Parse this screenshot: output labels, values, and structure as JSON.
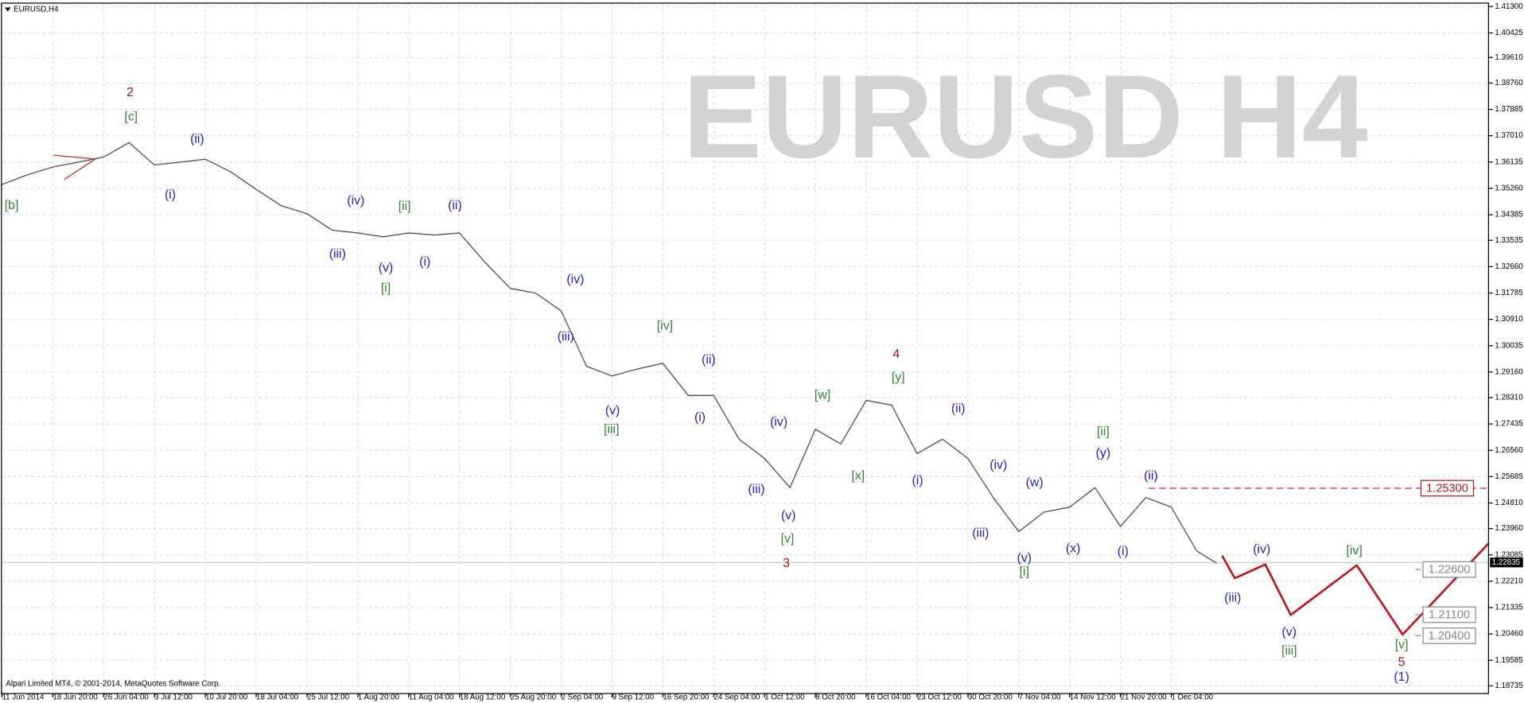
{
  "chart_data": {
    "type": "line",
    "title": "EURUSD,H4",
    "watermark": "EURUSD H4",
    "footer": "Alpari Limited MT4, © 2001-2014, MetaQuotes Software Corp.",
    "xlim": [
      0,
      29.25
    ],
    "ylim": [
      1.1848,
      1.4143
    ],
    "grid": true,
    "xticks": [
      {
        "value": 0,
        "label": "11 Jun 2014"
      },
      {
        "value": 1,
        "label": "18 Jun 20:00"
      },
      {
        "value": 2,
        "label": "26 Jun 04:00"
      },
      {
        "value": 3,
        "label": "3 Jul 12:00"
      },
      {
        "value": 4,
        "label": "10 Jul 20:00"
      },
      {
        "value": 5,
        "label": "18 Jul 04:00"
      },
      {
        "value": 6,
        "label": "25 Jul 12:00"
      },
      {
        "value": 7,
        "label": "1 Aug 20:00"
      },
      {
        "value": 8,
        "label": "11 Aug 04:00"
      },
      {
        "value": 9,
        "label": "18 Aug 12:00"
      },
      {
        "value": 10,
        "label": "25 Aug 20:00"
      },
      {
        "value": 11,
        "label": "2 Sep 04:00"
      },
      {
        "value": 12,
        "label": "9 Sep 12:00"
      },
      {
        "value": 13,
        "label": "16 Sep 20:00"
      },
      {
        "value": 14,
        "label": "24 Sep 04:00"
      },
      {
        "value": 15,
        "label": "1 Oct 12:00"
      },
      {
        "value": 16,
        "label": "8 Oct 20:00"
      },
      {
        "value": 17,
        "label": "16 Oct 04:00"
      },
      {
        "value": 18,
        "label": "23 Oct 12:00"
      },
      {
        "value": 19,
        "label": "30 Oct 20:00"
      },
      {
        "value": 20,
        "label": "7 Nov 04:00"
      },
      {
        "value": 21,
        "label": "14 Nov 12:00"
      },
      {
        "value": 22,
        "label": "21 Nov 20:00"
      },
      {
        "value": 23,
        "label": "1 Dec 04:00"
      }
    ],
    "yticks": [
      {
        "value": 1.413,
        "label": "1.41300"
      },
      {
        "value": 1.40425,
        "label": "1.40425"
      },
      {
        "value": 1.3961,
        "label": "1.39610"
      },
      {
        "value": 1.3876,
        "label": "1.38760"
      },
      {
        "value": 1.37885,
        "label": "1.37885"
      },
      {
        "value": 1.3701,
        "label": "1.37010"
      },
      {
        "value": 1.36135,
        "label": "1.36135"
      },
      {
        "value": 1.3526,
        "label": "1.35260"
      },
      {
        "value": 1.34385,
        "label": "1.34385"
      },
      {
        "value": 1.33535,
        "label": "1.33535"
      },
      {
        "value": 1.3266,
        "label": "1.32660"
      },
      {
        "value": 1.31785,
        "label": "1.31785"
      },
      {
        "value": 1.3091,
        "label": "1.30910"
      },
      {
        "value": 1.30035,
        "label": "1.30035"
      },
      {
        "value": 1.2916,
        "label": "1.29160"
      },
      {
        "value": 1.2831,
        "label": "1.28310"
      },
      {
        "value": 1.27435,
        "label": "1.27435"
      },
      {
        "value": 1.2656,
        "label": "1.26560"
      },
      {
        "value": 1.25685,
        "label": "1.25685"
      },
      {
        "value": 1.2481,
        "label": "1.24810"
      },
      {
        "value": 1.2396,
        "label": "1.23960"
      },
      {
        "value": 1.23085,
        "label": "1.23085"
      },
      {
        "value": 1.2221,
        "label": "1.22210"
      },
      {
        "value": 1.21335,
        "label": "1.21335"
      },
      {
        "value": 1.2046,
        "label": "1.20460"
      },
      {
        "value": 1.19585,
        "label": "1.19585"
      },
      {
        "value": 1.18735,
        "label": "1.18735"
      }
    ],
    "series": [
      {
        "name": "EURUSD",
        "color": "#555555",
        "x": [
          0,
          0.5,
          1,
          1.5,
          2,
          2.5,
          3,
          3.5,
          4,
          4.5,
          5,
          5.5,
          6,
          6.5,
          7,
          7.5,
          8,
          8.5,
          9,
          9.5,
          10,
          10.5,
          11,
          11.5,
          12,
          12.5,
          13,
          13.5,
          14,
          14.5,
          15,
          15.5,
          16,
          16.5,
          17,
          17.5,
          18,
          18.5,
          19,
          19.5,
          20,
          20.5,
          21,
          21.5,
          22,
          22.5,
          23,
          23.5,
          23.9
        ],
        "values": [
          1.3539,
          1.3571,
          1.3597,
          1.3613,
          1.363,
          1.3678,
          1.3604,
          1.3613,
          1.3623,
          1.3581,
          1.3523,
          1.3468,
          1.3442,
          1.3387,
          1.3378,
          1.3365,
          1.3378,
          1.3371,
          1.3378,
          1.3281,
          1.3194,
          1.3178,
          1.3119,
          1.2935,
          1.2903,
          1.2926,
          1.2945,
          1.2838,
          1.2838,
          1.2693,
          1.2629,
          1.2532,
          1.2726,
          1.2677,
          1.2822,
          1.2806,
          1.2645,
          1.2693,
          1.2629,
          1.2499,
          1.2386,
          1.2451,
          1.2467,
          1.2532,
          1.2403,
          1.2499,
          1.2467,
          1.2322,
          1.228
        ]
      },
      {
        "name": "Forecast",
        "color": "#c0181c",
        "x": [
          24,
          24.25,
          24.85,
          25.35,
          26.65,
          27.55,
          29.25
        ],
        "values": [
          1.2306,
          1.2231,
          1.2277,
          1.2109,
          1.2274,
          1.2044,
          1.2348
        ]
      }
    ],
    "levels": [
      {
        "value": 1.253,
        "label": "1.25300",
        "color": "#c0181c",
        "x": 22.55,
        "dashed": true
      },
      {
        "value": 1.226,
        "label": "1.22600",
        "color": "#888888",
        "x": 27.8,
        "dashed": false
      },
      {
        "value": 1.211,
        "label": "1.21100",
        "color": "#888888",
        "x": 27.8,
        "dashed": false
      },
      {
        "value": 1.204,
        "label": "1.20400",
        "color": "#888888",
        "x": 27.8,
        "dashed": false
      }
    ],
    "current_price": {
      "value": 1.22835,
      "label": "1.22835"
    },
    "annotations": [
      {
        "text": "2",
        "color": "#a01010",
        "x": 2.52,
        "y": 1.3843
      },
      {
        "text": "[c]",
        "color": "#2e8b2e",
        "x": 2.54,
        "y": 1.3762
      },
      {
        "text": "(ii)",
        "color": "#2222cc",
        "x": 3.84,
        "y": 1.3688
      },
      {
        "text": "[b]",
        "color": "#2e8b2e",
        "x": 0.19,
        "y": 1.3468
      },
      {
        "text": "(i)",
        "color": "#2222cc",
        "x": 3.31,
        "y": 1.3504
      },
      {
        "text": "(iv)",
        "color": "#2222cc",
        "x": 6.96,
        "y": 1.3484
      },
      {
        "text": "[ii]",
        "color": "#2e8b2e",
        "x": 7.92,
        "y": 1.3465
      },
      {
        "text": "(ii)",
        "color": "#2222cc",
        "x": 8.91,
        "y": 1.3468
      },
      {
        "text": "(iii)",
        "color": "#2222cc",
        "x": 6.6,
        "y": 1.3307
      },
      {
        "text": "(v)",
        "color": "#2222cc",
        "x": 7.55,
        "y": 1.3261
      },
      {
        "text": "(i)",
        "color": "#2222cc",
        "x": 8.32,
        "y": 1.3281
      },
      {
        "text": "[i]",
        "color": "#2e8b2e",
        "x": 7.55,
        "y": 1.3194
      },
      {
        "text": "(iv)",
        "color": "#2222cc",
        "x": 11.28,
        "y": 1.3223
      },
      {
        "text": "(iii)",
        "color": "#2222cc",
        "x": 11.09,
        "y": 1.3032
      },
      {
        "text": "[iv]",
        "color": "#2e8b2e",
        "x": 13.04,
        "y": 1.3068
      },
      {
        "text": "(ii)",
        "color": "#2222cc",
        "x": 13.9,
        "y": 1.2955
      },
      {
        "text": "(v)",
        "color": "#2222cc",
        "x": 12.01,
        "y": 1.2787
      },
      {
        "text": "[iii]",
        "color": "#2e8b2e",
        "x": 11.99,
        "y": 1.2725
      },
      {
        "text": "(i)",
        "color": "#2222cc",
        "x": 13.73,
        "y": 1.2764
      },
      {
        "text": "4",
        "color": "#a01010",
        "x": 17.59,
        "y": 1.2974
      },
      {
        "text": "[y]",
        "color": "#2e8b2e",
        "x": 17.63,
        "y": 1.2897
      },
      {
        "text": "[w]",
        "color": "#2e8b2e",
        "x": 16.14,
        "y": 1.2838
      },
      {
        "text": "(iv)",
        "color": "#2222cc",
        "x": 15.28,
        "y": 1.2748
      },
      {
        "text": "(ii)",
        "color": "#2222cc",
        "x": 18.81,
        "y": 1.2793
      },
      {
        "text": "(iii)",
        "color": "#2222cc",
        "x": 14.84,
        "y": 1.2525
      },
      {
        "text": "(v)",
        "color": "#2222cc",
        "x": 15.47,
        "y": 1.2438
      },
      {
        "text": "[x]",
        "color": "#2e8b2e",
        "x": 16.84,
        "y": 1.257
      },
      {
        "text": "(i)",
        "color": "#2222cc",
        "x": 18.01,
        "y": 1.2554
      },
      {
        "text": "[v]",
        "color": "#2e8b2e",
        "x": 15.45,
        "y": 1.2361
      },
      {
        "text": "3",
        "color": "#a01010",
        "x": 15.43,
        "y": 1.228
      },
      {
        "text": "[ii]",
        "color": "#2e8b2e",
        "x": 21.66,
        "y": 1.2716
      },
      {
        "text": "(y)",
        "color": "#2222cc",
        "x": 21.66,
        "y": 1.2645
      },
      {
        "text": "(iv)",
        "color": "#2222cc",
        "x": 19.6,
        "y": 1.2606
      },
      {
        "text": "(w)",
        "color": "#2222cc",
        "x": 20.31,
        "y": 1.2548
      },
      {
        "text": "(ii)",
        "color": "#2222cc",
        "x": 22.6,
        "y": 1.257
      },
      {
        "text": "(iii)",
        "color": "#2222cc",
        "x": 19.25,
        "y": 1.238
      },
      {
        "text": "(v)",
        "color": "#2222cc",
        "x": 20.11,
        "y": 1.2296
      },
      {
        "text": "[i]",
        "color": "#2e8b2e",
        "x": 20.11,
        "y": 1.2251
      },
      {
        "text": "(x)",
        "color": "#2222cc",
        "x": 21.07,
        "y": 1.2328
      },
      {
        "text": "(i)",
        "color": "#2222cc",
        "x": 22.05,
        "y": 1.2319
      },
      {
        "text": "(iv)",
        "color": "#2222cc",
        "x": 24.78,
        "y": 1.2325
      },
      {
        "text": "[iv]",
        "color": "#2e8b2e",
        "x": 26.6,
        "y": 1.2322
      },
      {
        "text": "(iii)",
        "color": "#2222cc",
        "x": 24.21,
        "y": 1.2164
      },
      {
        "text": "(v)",
        "color": "#2222cc",
        "x": 25.32,
        "y": 1.2051
      },
      {
        "text": "[iii]",
        "color": "#2e8b2e",
        "x": 25.32,
        "y": 1.1989
      },
      {
        "text": "[v]",
        "color": "#2e8b2e",
        "x": 27.53,
        "y": 1.2009
      },
      {
        "text": "5",
        "color": "#a01010",
        "x": 27.53,
        "y": 1.195
      },
      {
        "text": "(1)",
        "color": "#2222cc",
        "x": 27.53,
        "y": 1.1902
      }
    ]
  }
}
